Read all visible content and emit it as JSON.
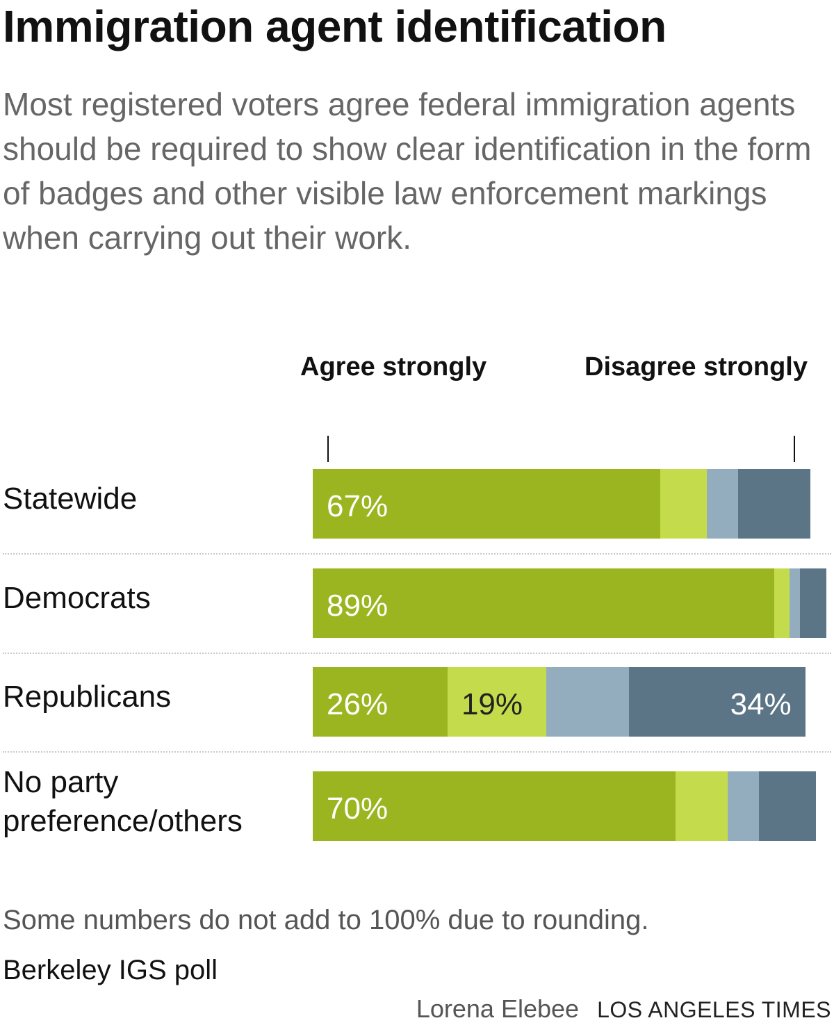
{
  "title": "Immigration agent identification",
  "subtitle": "Most registered voters agree federal immigration agents should be required to show clear identification in the form of badges and other visible law enforcement markings when carrying out their work.",
  "scale": {
    "left_label": "Agree strongly",
    "right_label": "Disagree strongly"
  },
  "colors": {
    "agree_strongly": "#9bb521",
    "agree_somewhat": "#c4dc4c",
    "disagree_somewhat": "#93adbf",
    "disagree_strongly": "#5b7587",
    "agree_label_text": "#ffffff",
    "agree_somewhat_label_text": "#222222",
    "disagree_label_text": "#ffffff"
  },
  "chart_data": {
    "type": "bar",
    "orientation": "horizontal",
    "stacked": true,
    "categories": [
      "Statewide",
      "Democrats",
      "Republicans",
      "No party preference/others"
    ],
    "series": [
      {
        "values": [
          67,
          89,
          26,
          70
        ],
        "labels": [
          "67%",
          "89%",
          "26%",
          "70%"
        ]
      },
      {
        "values": [
          9,
          3,
          19,
          10
        ],
        "labels": [
          "",
          "",
          "19%",
          ""
        ]
      },
      {
        "values": [
          6,
          2,
          16,
          6
        ],
        "labels": [
          "",
          "",
          "",
          ""
        ]
      },
      {
        "values": [
          14,
          5,
          34,
          11
        ],
        "labels": [
          "",
          "",
          "34%",
          ""
        ]
      }
    ],
    "xlim": [
      0,
      100
    ],
    "grid": false,
    "legend": "none"
  },
  "note": "Some numbers do not add to 100% due to rounding.",
  "source": "Berkeley IGS poll",
  "credit": {
    "author": "Lorena Elebee",
    "organization": "LOS ANGELES TIMES"
  }
}
